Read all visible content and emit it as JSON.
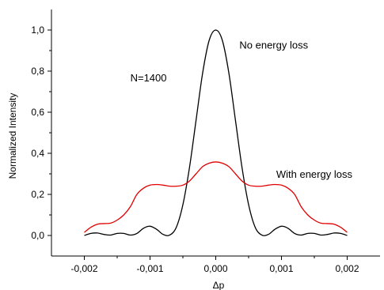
{
  "chart_data": {
    "type": "line",
    "xlabel": "Δp",
    "ylabel": "Normalized Intensity",
    "xlim": [
      -0.0025,
      0.0025
    ],
    "ylim": [
      -0.1,
      1.1
    ],
    "xticks": [
      -0.002,
      -0.001,
      0.0,
      0.001,
      0.002
    ],
    "xtick_labels": [
      "-0,002",
      "-0,001",
      "0,000",
      "0,001",
      "0,002"
    ],
    "yticks": [
      0.0,
      0.2,
      0.4,
      0.6,
      0.8,
      1.0
    ],
    "ytick_labels": [
      "0,0",
      "0,2",
      "0,4",
      "0,6",
      "0,8",
      "1,0"
    ],
    "grid": false,
    "annotations": [
      {
        "text": "N=1400",
        "x": -0.0013,
        "y": 0.75
      },
      {
        "text": "No energy loss",
        "x": 0.00036,
        "y": 0.91
      },
      {
        "text": "With energy loss",
        "x": 0.00092,
        "y": 0.28
      }
    ],
    "series": [
      {
        "color": "#000000",
        "x": [
          -0.002,
          -0.0019,
          -0.0018,
          -0.0017,
          -0.0016,
          -0.0015,
          -0.0014,
          -0.0013,
          -0.0012,
          -0.0011,
          -0.001,
          -0.0009,
          -0.0008,
          -0.0007,
          -0.0006,
          -0.0005,
          -0.0004,
          -0.0003,
          -0.0002,
          -0.0001,
          0.0,
          0.0001,
          0.0002,
          0.0003,
          0.0004,
          0.0005,
          0.0006,
          0.0007,
          0.0008,
          0.0009,
          0.001,
          0.0011,
          0.0012,
          0.0013,
          0.0014,
          0.0015,
          0.0016,
          0.0017,
          0.0018,
          0.0019,
          0.002
        ],
        "y": [
          0.0,
          0.01,
          0.012,
          0.005,
          0.002,
          0.01,
          0.01,
          0.002,
          0.01,
          0.035,
          0.045,
          0.03,
          0.005,
          0.002,
          0.04,
          0.15,
          0.33,
          0.56,
          0.79,
          0.95,
          1.0,
          0.95,
          0.79,
          0.56,
          0.33,
          0.15,
          0.04,
          0.002,
          0.005,
          0.03,
          0.045,
          0.035,
          0.01,
          0.002,
          0.01,
          0.01,
          0.002,
          0.005,
          0.012,
          0.01,
          0.0
        ]
      },
      {
        "color": "#e00000",
        "x": [
          -0.002,
          -0.0019,
          -0.0018,
          -0.0017,
          -0.0016,
          -0.0015,
          -0.0014,
          -0.0013,
          -0.0012,
          -0.0011,
          -0.001,
          -0.0009,
          -0.0008,
          -0.0007,
          -0.0006,
          -0.0005,
          -0.0004,
          -0.0003,
          -0.0002,
          -0.0001,
          0.0,
          0.0001,
          0.0002,
          0.0003,
          0.0004,
          0.0005,
          0.0006,
          0.0007,
          0.0008,
          0.0009,
          0.001,
          0.0011,
          0.0012,
          0.0013,
          0.0014,
          0.0015,
          0.0016,
          0.0017,
          0.0018,
          0.0019,
          0.002
        ],
        "y": [
          0.015,
          0.04,
          0.055,
          0.058,
          0.06,
          0.075,
          0.1,
          0.14,
          0.2,
          0.23,
          0.245,
          0.248,
          0.245,
          0.24,
          0.24,
          0.245,
          0.265,
          0.3,
          0.335,
          0.352,
          0.358,
          0.352,
          0.335,
          0.3,
          0.265,
          0.245,
          0.24,
          0.24,
          0.245,
          0.248,
          0.245,
          0.23,
          0.2,
          0.14,
          0.1,
          0.075,
          0.06,
          0.058,
          0.055,
          0.04,
          0.015
        ]
      }
    ]
  }
}
